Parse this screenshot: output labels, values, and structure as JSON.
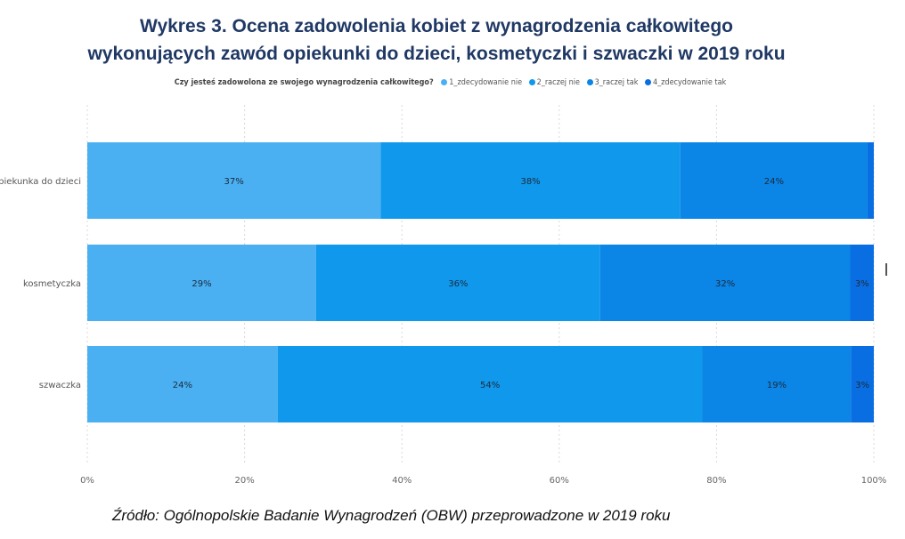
{
  "title_line1": "Wykres 3. Ocena zadowolenia kobiet z wynagrodzenia całkowitego",
  "title_line2": "wykonujących zawód opiekunki do dzieci, kosmetyczki i szwaczki w 2019 roku",
  "legend": {
    "title": "Czy jesteś zadowolona ze swojego wynagrodzenia całkowitego?",
    "items": [
      {
        "label": "1_zdecydowanie nie",
        "color": "#4ab0f2"
      },
      {
        "label": "2_raczej nie",
        "color": "#0f98ec"
      },
      {
        "label": "3_raczej tak",
        "color": "#0b85e6"
      },
      {
        "label": "4_zdecydowanie tak",
        "color": "#0a6ee3"
      }
    ]
  },
  "source": "Źródło: Ogólnopolskie Badanie Wynagrodzeń (OBW) przeprowadzone w 2019 roku",
  "chart_data": {
    "type": "bar",
    "orientation": "horizontal",
    "stacked": true,
    "title": "Wykres 3. Ocena zadowolenia kobiet z wynagrodzenia całkowitego wykonujących zawód opiekunki do dzieci, kosmetyczki i szwaczki w 2019 roku",
    "categories": [
      "opiekunka do dzieci",
      "kosmetyczka",
      "szwaczka"
    ],
    "series": [
      {
        "name": "1_zdecydowanie nie",
        "values": [
          37.3,
          29.1,
          24.2
        ],
        "labels": [
          "37%",
          "29%",
          "24%"
        ],
        "color": "#4ab0f2"
      },
      {
        "name": "2_raczej nie",
        "values": [
          38.1,
          36.1,
          54.0
        ],
        "labels": [
          "38%",
          "36%",
          "54%"
        ],
        "color": "#0f98ec"
      },
      {
        "name": "3_raczej tak",
        "values": [
          23.8,
          31.8,
          18.9
        ],
        "labels": [
          "24%",
          "32%",
          "19%"
        ],
        "color": "#0b85e6"
      },
      {
        "name": "4_zdecydowanie tak",
        "values": [
          0.8,
          3.0,
          2.9
        ],
        "labels": [
          "",
          "3%",
          "3%"
        ],
        "color": "#0a6ee3"
      }
    ],
    "xlim": [
      0,
      100
    ],
    "xticks": [
      "0%",
      "20%",
      "40%",
      "60%",
      "80%",
      "100%"
    ],
    "xlabel": "",
    "ylabel": "",
    "grid": true,
    "legend_position": "top"
  }
}
